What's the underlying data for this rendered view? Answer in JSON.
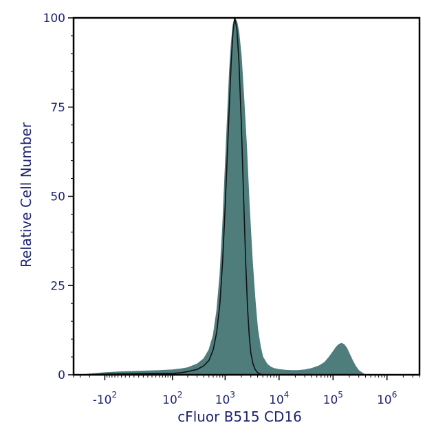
{
  "chart_data": {
    "type": "area",
    "title": "",
    "xlabel": "cFluor B515 CD16",
    "ylabel": "Relative Cell Number",
    "x_scale": "biexponential",
    "ylim": [
      0,
      100
    ],
    "y_ticks": [
      "0",
      "25",
      "50",
      "75",
      "100"
    ],
    "x_ticks": [
      {
        "value": -100,
        "base": "-10",
        "exp": "2"
      },
      {
        "value": 100,
        "base": "10",
        "exp": "2"
      },
      {
        "value": 1000,
        "base": "10",
        "exp": "3"
      },
      {
        "value": 10000,
        "base": "10",
        "exp": "4"
      },
      {
        "value": 100000,
        "base": "10",
        "exp": "5"
      },
      {
        "value": 1000000,
        "base": "10",
        "exp": "6"
      }
    ],
    "grid": false,
    "series": [
      {
        "style": "filled",
        "color": "#4e7d7c",
        "x": [
          -300,
          -150,
          -100,
          -50,
          0,
          50,
          100,
          150,
          200,
          300,
          400,
          500,
          600,
          700,
          800,
          900,
          1000,
          1100,
          1200,
          1300,
          1400,
          1500,
          1650,
          1800,
          2000,
          2200,
          2500,
          2800,
          3200,
          3600,
          4000,
          4500,
          5000,
          6000,
          7000,
          8000,
          10000,
          13000,
          17000,
          22000,
          30000,
          40000,
          55000,
          70000,
          85000,
          100000,
          115000,
          130000,
          145000,
          160000,
          180000,
          200000,
          230000,
          260000,
          300000,
          350000,
          400000
        ],
        "y": [
          0,
          0.4,
          0.6,
          0.8,
          1,
          1.2,
          1.4,
          1.7,
          2.0,
          3.0,
          4.5,
          7,
          11,
          18,
          28,
          42,
          58,
          72,
          85,
          93,
          98,
          100,
          99,
          96,
          89,
          79,
          64,
          48,
          32,
          21,
          13,
          8,
          5,
          3,
          2.2,
          1.8,
          1.5,
          1.3,
          1.2,
          1.2,
          1.4,
          1.8,
          2.5,
          3.5,
          5,
          6.5,
          7.8,
          8.6,
          8.8,
          8.5,
          7.5,
          6,
          4,
          2.5,
          1.2,
          0.5,
          0
        ]
      },
      {
        "style": "outline",
        "color": "#111111",
        "x": [
          -300,
          -150,
          -100,
          0,
          100,
          150,
          200,
          300,
          400,
          500,
          600,
          700,
          800,
          900,
          1000,
          1100,
          1200,
          1300,
          1400,
          1500,
          1650,
          1800,
          2000,
          2200,
          2400,
          2600,
          2800,
          3000,
          3300,
          3600,
          4000,
          4500,
          5000
        ],
        "y": [
          0,
          0.1,
          0.2,
          0.3,
          0.4,
          0.6,
          0.9,
          1.5,
          2.5,
          4,
          7,
          12,
          20,
          32,
          47,
          62,
          76,
          88,
          96,
          100,
          97,
          88,
          70,
          50,
          32,
          19,
          11,
          6,
          3,
          1.5,
          0.6,
          0.2,
          0
        ]
      }
    ]
  }
}
